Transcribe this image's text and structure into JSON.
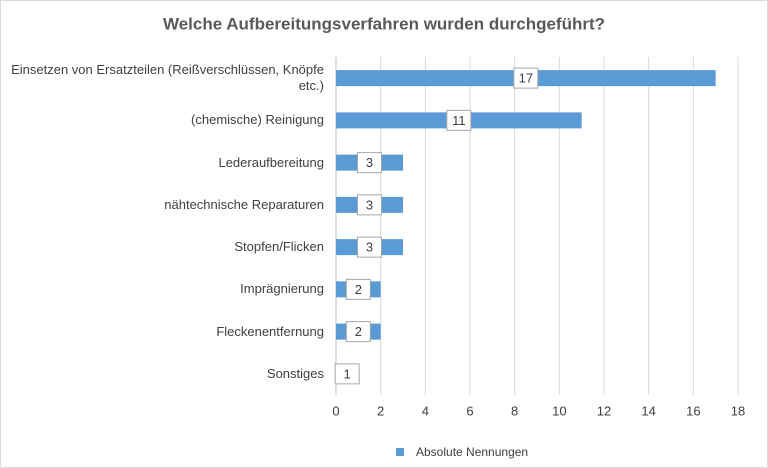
{
  "chart_data": {
    "type": "bar",
    "orientation": "horizontal",
    "title": "Welche Aufbereitungsverfahren wurden durchgeführt?",
    "categories": [
      "Einsetzen von Ersatzteilen (Reißverschlüssen, Knöpfe etc.)",
      "(chemische) Reinigung",
      "Lederaufbereitung",
      "nähtechnische Reparaturen",
      "Stopfen/Flicken",
      "Imprägnierung",
      "Fleckenentfernung",
      "Sonstiges"
    ],
    "series": [
      {
        "name": "Absolute Nennungen",
        "color": "#5b9bd5",
        "values": [
          17,
          11,
          3,
          3,
          3,
          2,
          2,
          1
        ]
      }
    ],
    "xlim": [
      0,
      18
    ],
    "xticks": [
      0,
      2,
      4,
      6,
      8,
      10,
      12,
      14,
      16,
      18
    ],
    "grid": true,
    "legend": "bottom"
  }
}
